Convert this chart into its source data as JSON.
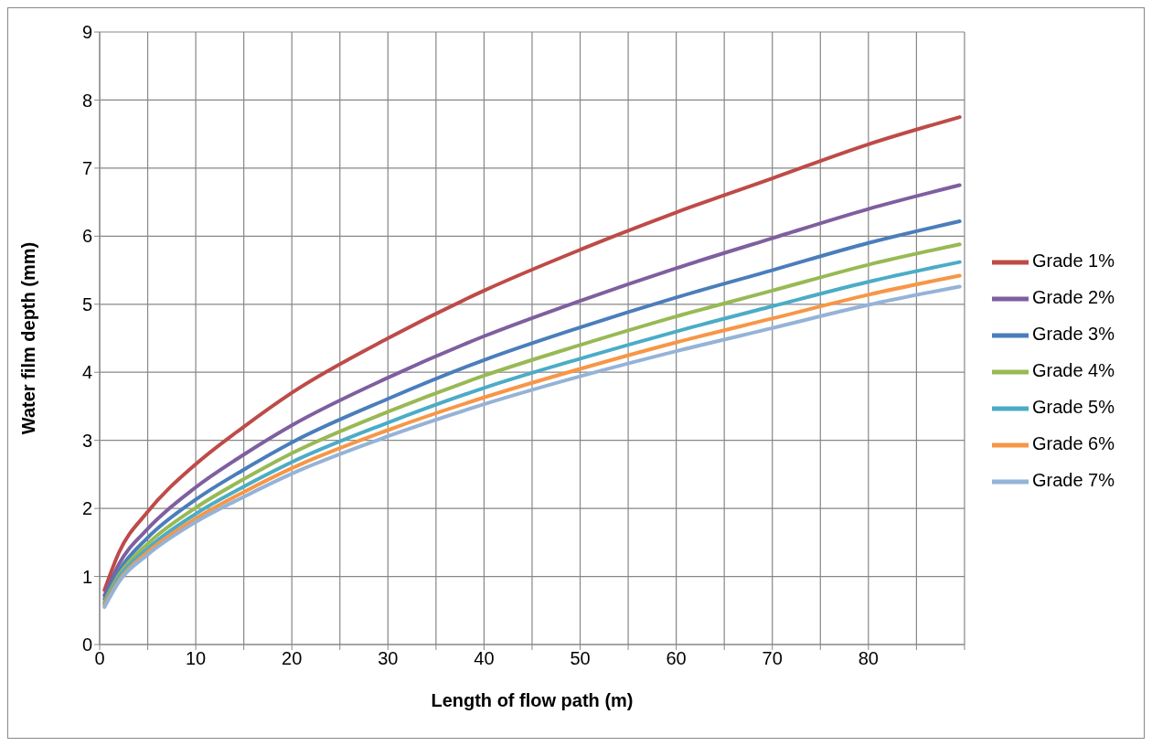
{
  "chart_data": {
    "type": "line",
    "xlabel": "Length of flow path (m)",
    "ylabel": "Water film depth (mm)",
    "x": [
      0.5,
      2,
      5,
      10,
      15,
      20,
      30,
      40,
      50,
      60,
      70,
      80,
      89.5
    ],
    "series": [
      {
        "name": "Grade 1%",
        "color": "#be4b48",
        "values": [
          0.8,
          1.35,
          1.95,
          2.65,
          3.2,
          3.7,
          4.5,
          5.2,
          5.8,
          6.35,
          6.85,
          7.35,
          7.75
        ]
      },
      {
        "name": "Grade 2%",
        "color": "#7f5f9f",
        "values": [
          0.72,
          1.18,
          1.7,
          2.31,
          2.79,
          3.22,
          3.92,
          4.53,
          5.05,
          5.53,
          5.97,
          6.4,
          6.75
        ]
      },
      {
        "name": "Grade 3%",
        "color": "#4a7ebb",
        "values": [
          0.67,
          1.08,
          1.57,
          2.13,
          2.57,
          2.97,
          3.61,
          4.18,
          4.66,
          5.1,
          5.5,
          5.9,
          6.22
        ]
      },
      {
        "name": "Grade 4%",
        "color": "#98b954",
        "values": [
          0.63,
          1.02,
          1.48,
          2.01,
          2.43,
          2.81,
          3.42,
          3.95,
          4.4,
          4.82,
          5.2,
          5.58,
          5.88
        ]
      },
      {
        "name": "Grade 5%",
        "color": "#4bacc6",
        "values": [
          0.6,
          0.98,
          1.41,
          1.92,
          2.32,
          2.68,
          3.26,
          3.77,
          4.2,
          4.6,
          4.97,
          5.33,
          5.62
        ]
      },
      {
        "name": "Grade 6%",
        "color": "#f79646",
        "values": [
          0.58,
          0.94,
          1.36,
          1.85,
          2.24,
          2.59,
          3.15,
          3.63,
          4.05,
          4.44,
          4.79,
          5.14,
          5.42
        ]
      },
      {
        "name": "Grade 7%",
        "color": "#95b3d7",
        "values": [
          0.55,
          0.92,
          1.32,
          1.8,
          2.17,
          2.51,
          3.06,
          3.53,
          3.94,
          4.31,
          4.65,
          4.99,
          5.26
        ]
      }
    ],
    "xlim": [
      0,
      90
    ],
    "xticks": [
      0,
      {
        "value": 5,
        "label": null
      },
      10,
      {
        "value": 15,
        "label": null
      },
      20,
      {
        "value": 25,
        "label": null
      },
      30,
      {
        "value": 35,
        "label": null
      },
      40,
      {
        "value": 45,
        "label": null
      },
      50,
      {
        "value": 55,
        "label": null
      },
      60,
      {
        "value": 65,
        "label": null
      },
      70,
      {
        "value": 75,
        "label": null
      },
      80,
      {
        "value": 85,
        "label": null
      },
      {
        "value": 90,
        "label": null
      }
    ],
    "ylim": [
      0,
      9
    ],
    "yticks": [
      0,
      1,
      2,
      3,
      4,
      5,
      6,
      7,
      8,
      9
    ],
    "grid": true,
    "legend": "right",
    "marker": "none",
    "line_style": "solid"
  }
}
